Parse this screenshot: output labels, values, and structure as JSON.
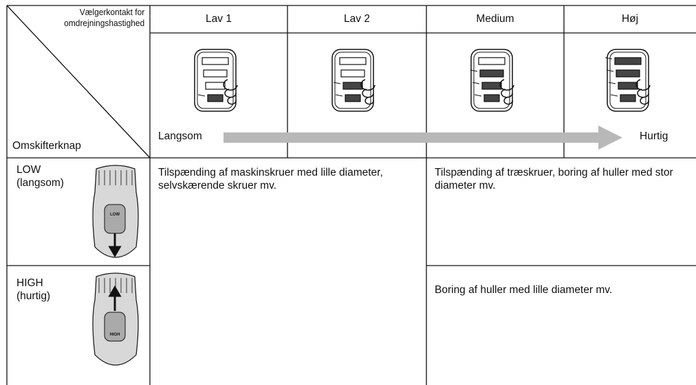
{
  "corner": {
    "top_lines": [
      "Vælgerkontakt for",
      "omdrejningshastighed"
    ],
    "bottom": "Omskifterknap"
  },
  "header": [
    "Lav 1",
    "Lav 2",
    "Medium",
    "Høj"
  ],
  "arrow": {
    "start": "Langsom",
    "end": "Hurtig"
  },
  "rows": [
    {
      "label": "LOW",
      "sublabel": "(langsom)",
      "button": "LOW"
    },
    {
      "label": "HIGH",
      "sublabel": "(hurtig)",
      "button": "HIGH"
    }
  ],
  "cells": {
    "low_speed_all": "Tilspænding af maskinskruer med lille diameter, selvskærende skruer mv.",
    "high_speed_low": "Tilspænding af træskruer, boring af huller med stor diameter mv.",
    "high_speed_high": "Boring af huller med lille diameter mv."
  }
}
